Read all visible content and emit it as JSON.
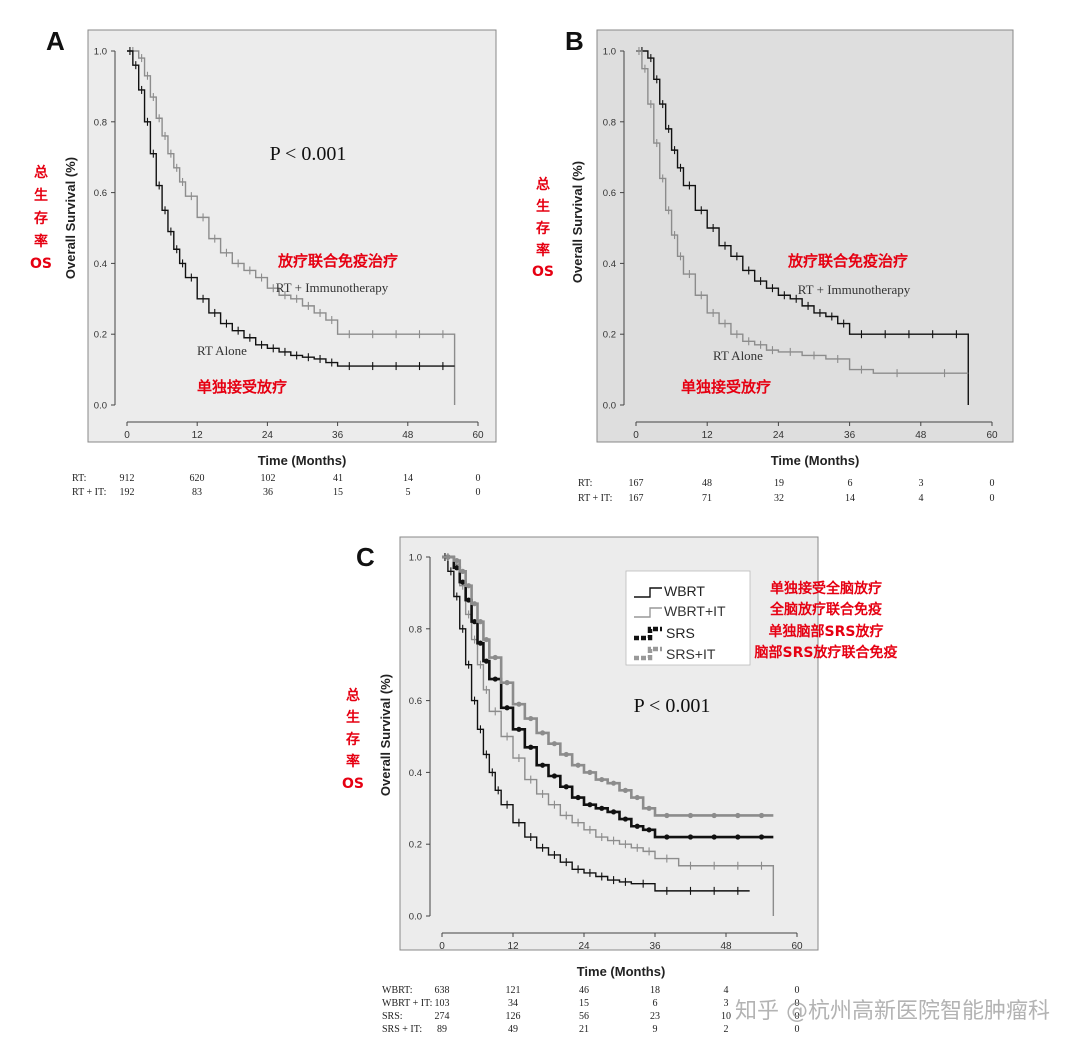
{
  "watermark": "知乎 @杭州高新医院智能肿瘤科",
  "colors": {
    "plot_bg_a": "#ececec",
    "plot_bg_b": "#dedede",
    "plot_bg_c": "#ececec",
    "dark": "#111111",
    "gray": "#8c8c8c",
    "red": "#e60012"
  },
  "chart_data": [
    {
      "panel": "A",
      "type": "line",
      "title": "",
      "xlabel": "Time (Months)",
      "ylabel": "Overall Survival (%)",
      "ylabel_cn": [
        "总",
        "生",
        "存",
        "率",
        "OS"
      ],
      "xlim": [
        0,
        60
      ],
      "ylim": [
        0,
        1.0
      ],
      "xticks": [
        "0",
        "12",
        "24",
        "36",
        "48",
        "60"
      ],
      "yticks": [
        "0.0",
        "0.2",
        "0.4",
        "0.6",
        "0.8",
        "1.0"
      ],
      "annotation": "P < 0.001",
      "series": [
        {
          "name": "RT + Immunotherapy",
          "name_cn": "放疗联合免疫治疗",
          "color": "gray",
          "x": [
            0,
            2,
            3,
            4,
            5,
            6,
            7,
            8,
            9,
            10,
            12,
            14,
            16,
            18,
            20,
            22,
            24,
            26,
            28,
            30,
            32,
            34,
            36,
            40,
            44,
            48,
            52,
            56,
            56
          ],
          "y": [
            1.0,
            0.98,
            0.93,
            0.87,
            0.81,
            0.76,
            0.71,
            0.67,
            0.63,
            0.59,
            0.53,
            0.47,
            0.43,
            0.4,
            0.38,
            0.36,
            0.33,
            0.31,
            0.3,
            0.28,
            0.26,
            0.24,
            0.2,
            0.2,
            0.2,
            0.2,
            0.2,
            0.2,
            0.0
          ]
        },
        {
          "name": "RT Alone",
          "name_cn": "单独接受放疗",
          "color": "dark",
          "x": [
            0,
            1,
            2,
            3,
            4,
            5,
            6,
            7,
            8,
            9,
            10,
            12,
            14,
            16,
            18,
            20,
            22,
            24,
            26,
            28,
            30,
            32,
            34,
            36,
            40,
            44,
            48,
            52,
            56
          ],
          "y": [
            1.0,
            0.96,
            0.89,
            0.8,
            0.71,
            0.62,
            0.55,
            0.49,
            0.44,
            0.4,
            0.36,
            0.3,
            0.26,
            0.23,
            0.21,
            0.19,
            0.17,
            0.16,
            0.15,
            0.14,
            0.135,
            0.13,
            0.12,
            0.11,
            0.11,
            0.11,
            0.11,
            0.11,
            0.11
          ]
        }
      ],
      "risk_table": {
        "rows": [
          {
            "label": "RT:",
            "values": [
              "912",
              "620",
              "102",
              "41",
              "14",
              "0"
            ]
          },
          {
            "label": "RT + IT:",
            "values": [
              "192",
              "83",
              "36",
              "15",
              "5",
              "0"
            ]
          }
        ]
      }
    },
    {
      "panel": "B",
      "type": "line",
      "title": "",
      "xlabel": "Time (Months)",
      "ylabel": "Overall Survival (%)",
      "ylabel_cn": [
        "总",
        "生",
        "存",
        "率",
        "OS"
      ],
      "xlim": [
        0,
        60
      ],
      "ylim": [
        0,
        1.0
      ],
      "xticks": [
        "0",
        "12",
        "24",
        "36",
        "48",
        "60"
      ],
      "yticks": [
        "0.0",
        "0.2",
        "0.4",
        "0.6",
        "0.8",
        "1.0"
      ],
      "series": [
        {
          "name": "RT + Immunotherapy",
          "name_cn": "放疗联合免疫治疗",
          "color": "dark",
          "x": [
            0,
            2,
            3,
            4,
            5,
            6,
            7,
            8,
            10,
            12,
            14,
            16,
            18,
            20,
            22,
            24,
            26,
            28,
            30,
            32,
            34,
            36,
            40,
            44,
            48,
            52,
            56,
            56
          ],
          "y": [
            1.0,
            0.98,
            0.92,
            0.85,
            0.78,
            0.72,
            0.67,
            0.62,
            0.55,
            0.5,
            0.45,
            0.42,
            0.38,
            0.35,
            0.33,
            0.31,
            0.3,
            0.28,
            0.26,
            0.25,
            0.23,
            0.2,
            0.2,
            0.2,
            0.2,
            0.2,
            0.2,
            0.0
          ]
        },
        {
          "name": "RT Alone",
          "name_cn": "单独接受放疗",
          "color": "gray",
          "x": [
            0,
            1,
            2,
            3,
            4,
            5,
            6,
            7,
            8,
            10,
            12,
            14,
            16,
            18,
            20,
            22,
            24,
            28,
            32,
            36,
            40,
            48,
            56
          ],
          "y": [
            1.0,
            0.95,
            0.85,
            0.74,
            0.64,
            0.55,
            0.48,
            0.42,
            0.37,
            0.31,
            0.26,
            0.23,
            0.2,
            0.18,
            0.17,
            0.155,
            0.15,
            0.14,
            0.13,
            0.1,
            0.09,
            0.09,
            0.09
          ]
        }
      ],
      "risk_table": {
        "rows": [
          {
            "label": "RT:",
            "values": [
              "167",
              "48",
              "19",
              "6",
              "3",
              "0"
            ]
          },
          {
            "label": "RT + IT:",
            "values": [
              "167",
              "71",
              "32",
              "14",
              "4",
              "0"
            ]
          }
        ]
      }
    },
    {
      "panel": "C",
      "type": "line",
      "title": "",
      "xlabel": "Time (Months)",
      "ylabel": "Overall Survival (%)",
      "ylabel_cn": [
        "总",
        "生",
        "存",
        "率",
        "OS"
      ],
      "xlim": [
        0,
        60
      ],
      "ylim": [
        0,
        1.0
      ],
      "xticks": [
        "0",
        "12",
        "24",
        "36",
        "48",
        "60"
      ],
      "yticks": [
        "0.0",
        "0.2",
        "0.4",
        "0.6",
        "0.8",
        "1.0"
      ],
      "annotation": "P < 0.001",
      "legend": "top-right",
      "series": [
        {
          "name": "WBRT",
          "name_cn": "单独接受全脑放疗",
          "color": "dark",
          "style": "thin",
          "x": [
            0,
            1,
            2,
            3,
            4,
            5,
            6,
            7,
            8,
            9,
            10,
            12,
            14,
            16,
            18,
            20,
            22,
            24,
            26,
            28,
            30,
            32,
            36,
            40,
            44,
            48,
            52
          ],
          "y": [
            1.0,
            0.96,
            0.89,
            0.8,
            0.7,
            0.6,
            0.52,
            0.45,
            0.4,
            0.35,
            0.31,
            0.26,
            0.22,
            0.19,
            0.17,
            0.15,
            0.13,
            0.12,
            0.11,
            0.1,
            0.095,
            0.09,
            0.07,
            0.07,
            0.07,
            0.07,
            0.07
          ]
        },
        {
          "name": "WBRT+IT",
          "name_cn": "全脑放疗联合免疫",
          "color": "gray",
          "style": "thin",
          "x": [
            0,
            2,
            3,
            4,
            5,
            6,
            7,
            8,
            10,
            12,
            14,
            16,
            18,
            20,
            22,
            24,
            26,
            28,
            30,
            32,
            34,
            36,
            40,
            44,
            48,
            52,
            56,
            56
          ],
          "y": [
            1.0,
            0.98,
            0.92,
            0.84,
            0.77,
            0.7,
            0.63,
            0.57,
            0.5,
            0.44,
            0.38,
            0.34,
            0.31,
            0.28,
            0.26,
            0.24,
            0.22,
            0.21,
            0.2,
            0.19,
            0.18,
            0.16,
            0.14,
            0.14,
            0.14,
            0.14,
            0.14,
            0.0
          ]
        },
        {
          "name": "SRS",
          "name_cn": "单独脑部SRS放疗",
          "color": "dark",
          "style": "thick",
          "x": [
            0,
            2,
            3,
            4,
            5,
            6,
            7,
            8,
            10,
            12,
            14,
            16,
            18,
            20,
            22,
            24,
            26,
            28,
            30,
            32,
            34,
            36,
            40,
            44,
            48,
            52,
            56
          ],
          "y": [
            1.0,
            0.97,
            0.93,
            0.88,
            0.82,
            0.76,
            0.71,
            0.66,
            0.58,
            0.52,
            0.47,
            0.42,
            0.39,
            0.36,
            0.33,
            0.31,
            0.3,
            0.29,
            0.27,
            0.25,
            0.24,
            0.22,
            0.22,
            0.22,
            0.22,
            0.22,
            0.22
          ]
        },
        {
          "name": "SRS+IT",
          "name_cn": "脑部SRS放疗联合免疫",
          "color": "gray",
          "style": "thick",
          "x": [
            0,
            2,
            3,
            4,
            5,
            6,
            7,
            8,
            10,
            12,
            14,
            16,
            18,
            20,
            22,
            24,
            26,
            28,
            30,
            32,
            34,
            36,
            40,
            44,
            48,
            52,
            56
          ],
          "y": [
            1.0,
            0.99,
            0.96,
            0.92,
            0.87,
            0.82,
            0.77,
            0.72,
            0.65,
            0.59,
            0.55,
            0.51,
            0.48,
            0.45,
            0.42,
            0.4,
            0.38,
            0.37,
            0.35,
            0.33,
            0.3,
            0.28,
            0.28,
            0.28,
            0.28,
            0.28,
            0.28
          ]
        }
      ],
      "risk_table": {
        "rows": [
          {
            "label": "WBRT:",
            "values": [
              "638",
              "121",
              "46",
              "18",
              "4",
              "0"
            ]
          },
          {
            "label": "WBRT + IT:",
            "values": [
              "103",
              "34",
              "15",
              "6",
              "3",
              "0"
            ]
          },
          {
            "label": "SRS:",
            "values": [
              "274",
              "126",
              "56",
              "23",
              "10",
              "0"
            ]
          },
          {
            "label": "SRS + IT:",
            "values": [
              "89",
              "49",
              "21",
              "9",
              "2",
              "0"
            ]
          }
        ]
      }
    }
  ]
}
